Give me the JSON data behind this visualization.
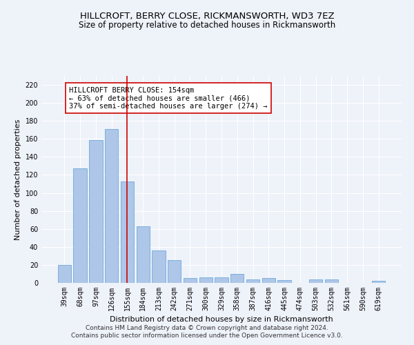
{
  "title": "HILLCROFT, BERRY CLOSE, RICKMANSWORTH, WD3 7EZ",
  "subtitle": "Size of property relative to detached houses in Rickmansworth",
  "xlabel": "Distribution of detached houses by size in Rickmansworth",
  "ylabel": "Number of detached properties",
  "categories": [
    "39sqm",
    "68sqm",
    "97sqm",
    "126sqm",
    "155sqm",
    "184sqm",
    "213sqm",
    "242sqm",
    "271sqm",
    "300sqm",
    "329sqm",
    "358sqm",
    "387sqm",
    "416sqm",
    "445sqm",
    "474sqm",
    "503sqm",
    "532sqm",
    "561sqm",
    "590sqm",
    "619sqm"
  ],
  "values": [
    20,
    127,
    159,
    171,
    113,
    63,
    36,
    25,
    5,
    6,
    6,
    10,
    4,
    5,
    3,
    0,
    4,
    4,
    0,
    0,
    2
  ],
  "bar_color": "#aec6e8",
  "bar_edge_color": "#5a9fd4",
  "ylim": [
    0,
    230
  ],
  "yticks": [
    0,
    20,
    40,
    60,
    80,
    100,
    120,
    140,
    160,
    180,
    200,
    220
  ],
  "vline_x": 4.0,
  "vline_color": "#cc0000",
  "annotation_text": "HILLCROFT BERRY CLOSE: 154sqm\n← 63% of detached houses are smaller (466)\n37% of semi-detached houses are larger (274) →",
  "annotation_box_color": "#ffffff",
  "annotation_box_edge": "#cc0000",
  "footer_line1": "Contains HM Land Registry data © Crown copyright and database right 2024.",
  "footer_line2": "Contains public sector information licensed under the Open Government Licence v3.0.",
  "title_fontsize": 9.5,
  "subtitle_fontsize": 8.5,
  "xlabel_fontsize": 8,
  "ylabel_fontsize": 8,
  "tick_fontsize": 7,
  "annotation_fontsize": 7.5,
  "footer_fontsize": 6.5,
  "background_color": "#eef2f9"
}
